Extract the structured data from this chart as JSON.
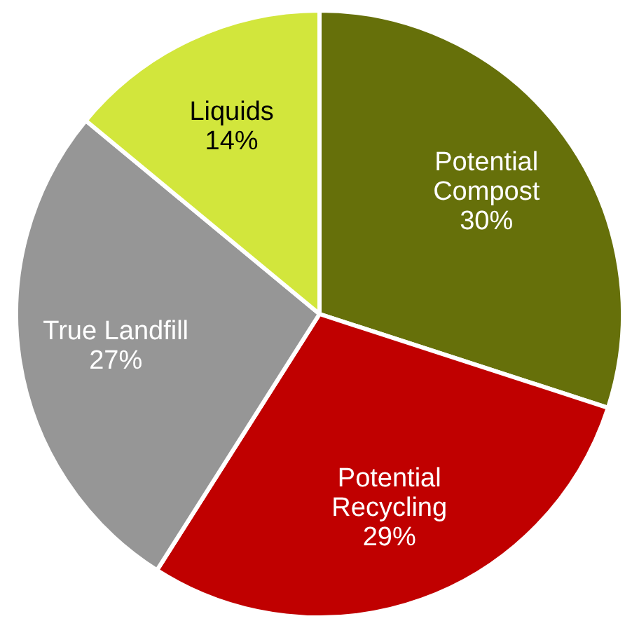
{
  "chart_data": {
    "type": "pie",
    "categories": [
      "Potential Compost",
      "Potential Recycling",
      "True Landfill",
      "Liquids"
    ],
    "values": [
      30,
      29,
      27,
      14
    ],
    "value_labels": [
      "30%",
      "29%",
      "27%",
      "14%"
    ],
    "colors": [
      "#66700a",
      "#c00000",
      "#969696",
      "#d2e63c"
    ]
  }
}
